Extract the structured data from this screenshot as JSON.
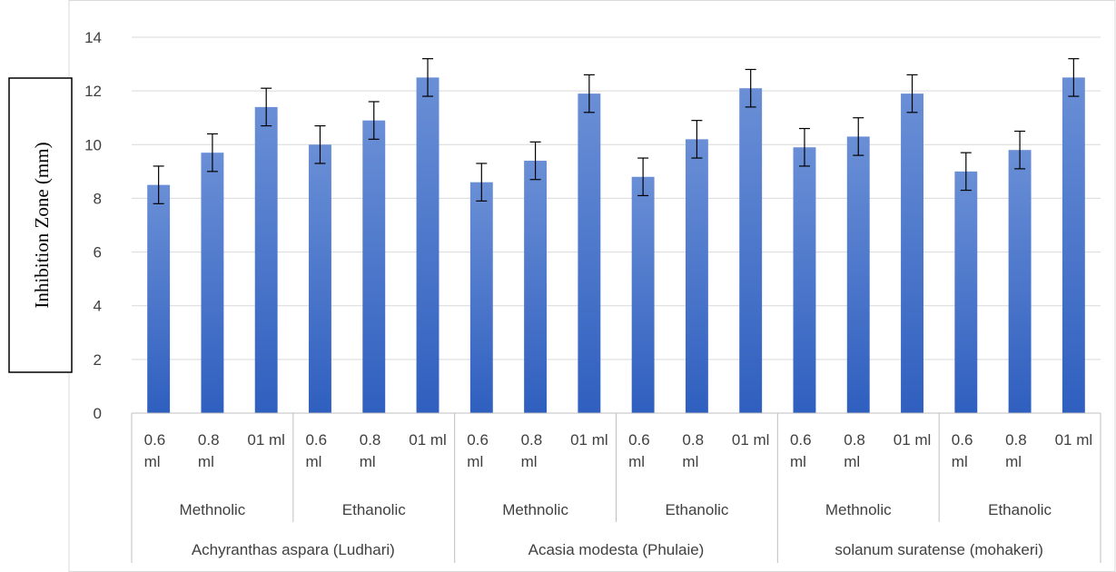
{
  "chart_data": {
    "type": "bar",
    "title": "",
    "xlabel": "",
    "ylabel": "Inhibition Zone (mm)",
    "ylim": [
      0,
      14
    ],
    "yticks": [
      0,
      2,
      4,
      6,
      8,
      10,
      12,
      14
    ],
    "grid": true,
    "legend": "none",
    "bar_color": "#4472C4",
    "groups": [
      {
        "name": "Achyranthas aspara (Ludhari)",
        "subgroups": [
          {
            "name": "Methnolic",
            "categories": [
              "0.6 ml",
              "0.8 ml",
              "01 ml"
            ],
            "values": [
              8.5,
              9.7,
              11.4
            ],
            "errors": [
              0.7,
              0.7,
              0.7
            ]
          },
          {
            "name": "Ethanolic",
            "categories": [
              "0.6 ml",
              "0.8 ml",
              "01 ml"
            ],
            "values": [
              10.0,
              10.9,
              12.5
            ],
            "errors": [
              0.7,
              0.7,
              0.7
            ]
          }
        ]
      },
      {
        "name": "Acasia modesta (Phulaie)",
        "subgroups": [
          {
            "name": "Methnolic",
            "categories": [
              "0.6 ml",
              "0.8 ml",
              "01 ml"
            ],
            "values": [
              8.6,
              9.4,
              11.9
            ],
            "errors": [
              0.7,
              0.7,
              0.7
            ]
          },
          {
            "name": "Ethanolic",
            "categories": [
              "0.6 ml",
              "0.8 ml",
              "01 ml"
            ],
            "values": [
              8.8,
              10.2,
              12.1
            ],
            "errors": [
              0.7,
              0.7,
              0.7
            ]
          }
        ]
      },
      {
        "name": "solanum suratense (mohakeri)",
        "subgroups": [
          {
            "name": "Methnolic",
            "categories": [
              "0.6 ml",
              "0.8 ml",
              "01 ml"
            ],
            "values": [
              9.9,
              10.3,
              11.9
            ],
            "errors": [
              0.7,
              0.7,
              0.7
            ]
          },
          {
            "name": "Ethanolic",
            "categories": [
              "0.6 ml",
              "0.8 ml",
              "01 ml"
            ],
            "values": [
              9.0,
              9.8,
              12.5
            ],
            "errors": [
              0.7,
              0.7,
              0.7
            ]
          }
        ]
      }
    ]
  }
}
